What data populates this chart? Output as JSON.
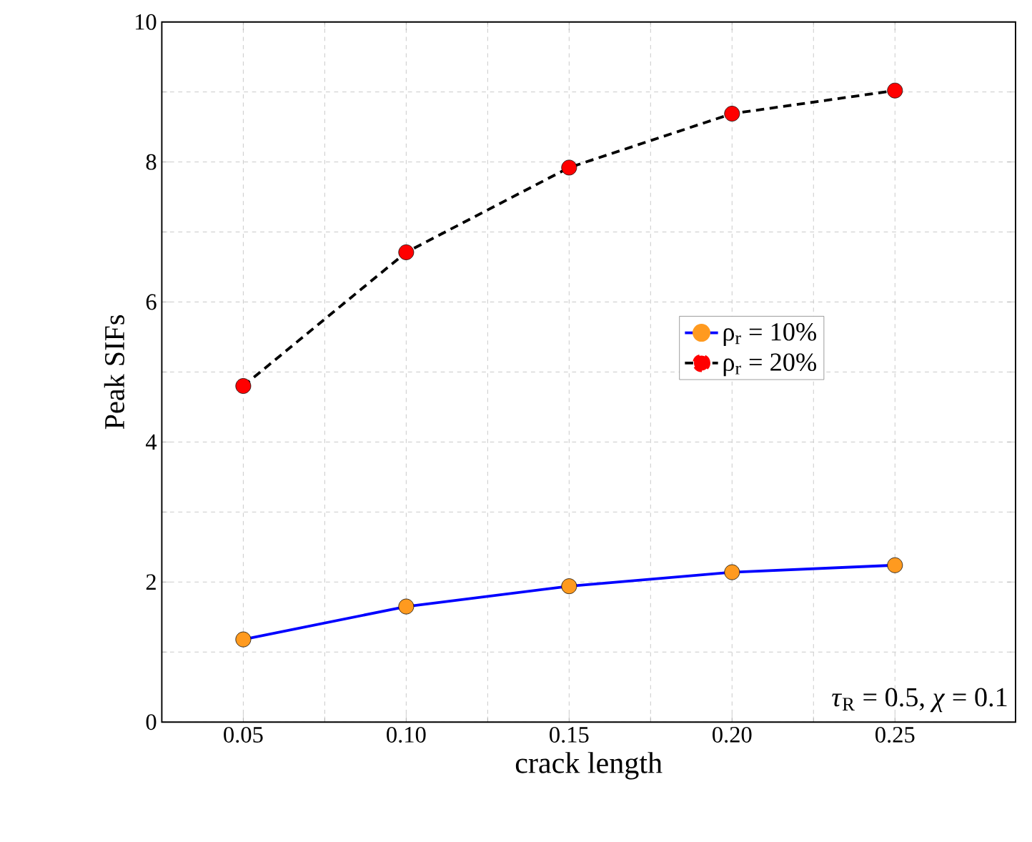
{
  "chart_data": {
    "type": "line",
    "xlabel": "crack length",
    "ylabel": "Peak SIFs",
    "x": [
      0.05,
      0.1,
      0.15,
      0.2,
      0.25
    ],
    "xlim": [
      0.025,
      0.287
    ],
    "ylim": [
      0,
      10
    ],
    "xticks": [
      {
        "value": 0.05,
        "label": "0.05"
      },
      {
        "value": 0.1,
        "label": "0.10"
      },
      {
        "value": 0.15,
        "label": "0.15"
      },
      {
        "value": 0.2,
        "label": "0.20"
      },
      {
        "value": 0.25,
        "label": "0.25"
      }
    ],
    "yticks": [
      0,
      2,
      4,
      6,
      8,
      10
    ],
    "series": [
      {
        "name": "ρ$_{r}$ = 10%",
        "color": "#0000ff",
        "line_style": "solid",
        "colors": [
          "#ff9a1f",
          "#ff9a1f",
          "#ff9a1f",
          "#ff9a1f",
          "#ff9a1f"
        ],
        "values": [
          1.18,
          1.65,
          1.94,
          2.14,
          2.24
        ]
      },
      {
        "name": "ρ$_{r}$ = 20%",
        "color": "#000000",
        "line_style": "dashed",
        "colors": [
          "#ff0000",
          "#ff0000",
          "#ff0000",
          "#ff0000",
          "#ff0000"
        ],
        "values": [
          4.8,
          6.71,
          7.92,
          8.69,
          9.02
        ]
      }
    ],
    "marker": "circle",
    "grid": true,
    "legend": "right",
    "annotations": [
      "*τ*$_{R}$ = 0.5, *χ* = 0.1"
    ]
  }
}
